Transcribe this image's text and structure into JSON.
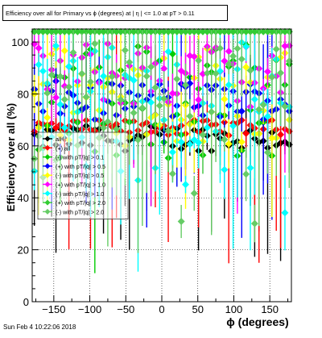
{
  "title": "Efficiency over all for Primary vs ϕ (degrees) at | η | <= 1.0 at pT > 0.11",
  "datestamp": "Sun Feb  4 10:22:06 2018",
  "chart_data": {
    "type": "scatter",
    "title": "Efficiency over all for Primary vs ϕ (degrees) at | η | <= 1.0 at pT > 0.11",
    "xlabel": "ϕ (degrees)",
    "ylabel": "Efficiency over all (%)",
    "xlim": [
      -180,
      180
    ],
    "ylim": [
      0,
      105
    ],
    "xticks": [
      -150,
      -100,
      -50,
      0,
      50,
      100,
      150
    ],
    "yticks": [
      0,
      20,
      40,
      60,
      80,
      100
    ],
    "grid": true,
    "legend_position": "left",
    "n_bins": 60,
    "series": [
      {
        "name": "all",
        "color": "#000000",
        "marker": "diamond",
        "level_min": 58,
        "level_max": 68
      },
      {
        "name": "(+) all",
        "color": "#ff0000",
        "marker": "diamond",
        "level_min": 64,
        "level_max": 70
      },
      {
        "name": "(-) with pT/|q| > 0.1",
        "color": "#00cc00",
        "marker": "diamond",
        "level_min": 55,
        "level_max": 100
      },
      {
        "name": "(+) with pT/|q| > 0.5",
        "color": "#0000ff",
        "marker": "diamond",
        "level_min": 70,
        "level_max": 85
      },
      {
        "name": "(-) with pT/|q| > 0.5",
        "color": "#ffff00",
        "marker": "diamond",
        "level_min": 60,
        "level_max": 100
      },
      {
        "name": "(+) with pT/|q| > 1.0",
        "color": "#ff00ff",
        "marker": "diamond",
        "level_min": 75,
        "level_max": 100
      },
      {
        "name": "(-) with pT/|q| > 1.0",
        "color": "#00ffff",
        "marker": "diamond",
        "level_min": 30,
        "level_max": 100
      },
      {
        "name": "(+) with pT/|q| > 2.0",
        "color": "#33cc33",
        "marker": "diamond",
        "level_min": 104,
        "level_max": 104
      },
      {
        "name": "(-) with pT/|q| > 2.0",
        "color": "#66cc66",
        "marker": "diamond",
        "level_min": 30,
        "level_max": 100
      }
    ]
  }
}
